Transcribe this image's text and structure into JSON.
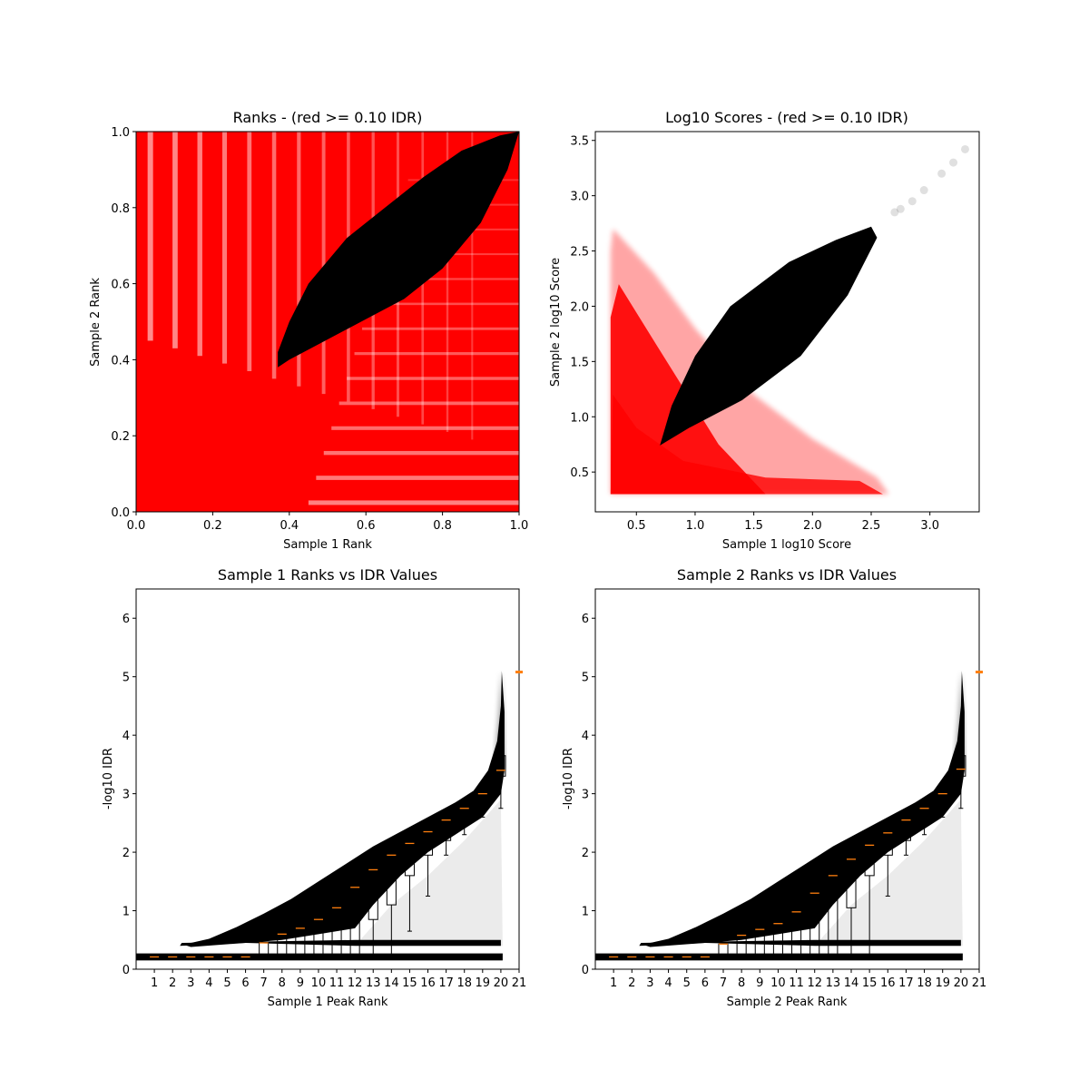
{
  "colors": {
    "hit": "#ff0000",
    "pass": "#000000",
    "median": "#ff7f0e",
    "box": "#000000"
  },
  "chart_data": [
    {
      "id": "ranks",
      "type": "scatter",
      "title": "Ranks - (red >= 0.10 IDR)",
      "xlabel": "Sample 1 Rank",
      "ylabel": "Sample 2 Rank",
      "xlim": [
        0,
        1
      ],
      "ylim": [
        0,
        1
      ],
      "xticks": [
        0,
        0.2,
        0.4,
        0.6,
        0.8,
        1.0
      ],
      "yticks": [
        0,
        0.2,
        0.4,
        0.6,
        0.8,
        1.0
      ],
      "xtick_labels": [
        "0.0",
        "0.2",
        "0.4",
        "0.6",
        "0.8",
        "1.0"
      ],
      "ytick_labels": [
        "0.0",
        "0.2",
        "0.4",
        "0.6",
        "0.8",
        "1.0"
      ],
      "series": [
        {
          "color": "red",
          "region": "above IDR 0.10 (filled background)"
        },
        {
          "color": "black",
          "region_polygon": [
            [
              0.37,
              0.38
            ],
            [
              0.4,
              0.4
            ],
            [
              0.55,
              0.48
            ],
            [
              0.7,
              0.56
            ],
            [
              0.8,
              0.64
            ],
            [
              0.9,
              0.76
            ],
            [
              0.97,
              0.9
            ],
            [
              1.0,
              1.0
            ],
            [
              0.95,
              0.99
            ],
            [
              0.85,
              0.95
            ],
            [
              0.75,
              0.88
            ],
            [
              0.65,
              0.8
            ],
            [
              0.55,
              0.72
            ],
            [
              0.45,
              0.6
            ],
            [
              0.4,
              0.5
            ],
            [
              0.37,
              0.42
            ]
          ]
        }
      ]
    },
    {
      "id": "scores",
      "type": "scatter",
      "title": "Log10 Scores - (red >= 0.10 IDR)",
      "xlabel": "Sample 1 log10 Score",
      "ylabel": "Sample 2 log10 Score",
      "xlim": [
        0.15,
        3.42
      ],
      "ylim": [
        0.14,
        3.58
      ],
      "xticks": [
        0.5,
        1.0,
        1.5,
        2.0,
        2.5,
        3.0
      ],
      "yticks": [
        0.5,
        1.0,
        1.5,
        2.0,
        2.5,
        3.0,
        3.5
      ],
      "xtick_labels": [
        "0.5",
        "1.0",
        "1.5",
        "2.0",
        "2.5",
        "3.0"
      ],
      "ytick_labels": [
        "0.5",
        "1.0",
        "1.5",
        "2.0",
        "2.5",
        "3.0",
        "3.5"
      ],
      "series": [
        {
          "color": "red",
          "region_polygon": [
            [
              0.28,
              0.3
            ],
            [
              2.65,
              0.3
            ],
            [
              2.55,
              0.45
            ],
            [
              2.0,
              0.8
            ],
            [
              1.5,
              1.2
            ],
            [
              1.0,
              1.8
            ],
            [
              0.65,
              2.3
            ],
            [
              0.3,
              2.7
            ],
            [
              0.28,
              2.5
            ]
          ]
        },
        {
          "color": "black",
          "region_polygon": [
            [
              0.7,
              0.74
            ],
            [
              0.95,
              0.9
            ],
            [
              1.4,
              1.15
            ],
            [
              1.9,
              1.55
            ],
            [
              2.3,
              2.1
            ],
            [
              2.55,
              2.62
            ],
            [
              2.5,
              2.72
            ],
            [
              2.2,
              2.6
            ],
            [
              1.8,
              2.4
            ],
            [
              1.3,
              2.0
            ],
            [
              1.0,
              1.55
            ],
            [
              0.8,
              1.1
            ]
          ]
        },
        {
          "color": "black",
          "points": [
            [
              2.75,
              2.88
            ],
            [
              2.85,
              2.95
            ],
            [
              2.95,
              3.05
            ],
            [
              3.1,
              3.2
            ],
            [
              3.2,
              3.3
            ],
            [
              3.3,
              3.42
            ],
            [
              2.7,
              2.85
            ]
          ]
        }
      ]
    },
    {
      "id": "s1idr",
      "type": "box",
      "title": "Sample 1 Ranks vs IDR Values",
      "xlabel": "Sample 1 Peak Rank",
      "ylabel": "-log10 IDR",
      "xlim": [
        0,
        21
      ],
      "ylim": [
        0,
        6.5
      ],
      "xticks": [
        1,
        2,
        3,
        4,
        5,
        6,
        7,
        8,
        9,
        10,
        11,
        12,
        13,
        14,
        15,
        16,
        17,
        18,
        19,
        20,
        21
      ],
      "yticks": [
        0,
        1,
        2,
        3,
        4,
        5,
        6
      ],
      "xtick_labels": [
        "1",
        "2",
        "3",
        "4",
        "5",
        "6",
        "7",
        "8",
        "9",
        "10",
        "11",
        "12",
        "13",
        "14",
        "15",
        "16",
        "17",
        "18",
        "19",
        "20",
        "21"
      ],
      "ytick_labels": [
        "0",
        "1",
        "2",
        "3",
        "4",
        "5",
        "6"
      ],
      "medians": [
        0.21,
        0.21,
        0.21,
        0.21,
        0.21,
        0.21,
        0.45,
        0.6,
        0.7,
        0.85,
        1.05,
        1.4,
        1.7,
        1.95,
        2.15,
        2.35,
        2.55,
        2.75,
        3.0,
        3.4
      ],
      "q1": [
        0.21,
        0.21,
        0.21,
        0.21,
        0.21,
        0.21,
        0.21,
        0.21,
        0.21,
        0.21,
        0.21,
        0.21,
        0.85,
        1.1,
        1.6,
        1.95,
        2.2,
        2.5,
        2.8,
        3.3
      ],
      "q3": [
        0.21,
        0.21,
        0.21,
        0.21,
        0.21,
        0.21,
        0.45,
        0.6,
        0.7,
        0.85,
        1.05,
        1.4,
        1.7,
        1.95,
        2.15,
        2.35,
        2.55,
        2.75,
        3.0,
        3.65
      ],
      "whisker_low": [
        0.21,
        0.21,
        0.21,
        0.21,
        0.21,
        0.21,
        0.21,
        0.21,
        0.21,
        0.21,
        0.21,
        0.21,
        0.21,
        0.21,
        0.65,
        1.25,
        1.95,
        2.3,
        2.6,
        2.75
      ],
      "whisker_high": [
        0.21,
        0.21,
        0.21,
        0.21,
        0.21,
        0.21,
        0.45,
        0.6,
        0.7,
        0.85,
        1.05,
        1.4,
        1.7,
        1.95,
        2.15,
        2.35,
        2.55,
        2.75,
        3.0,
        3.65
      ],
      "outlier_marker": {
        "x": 21,
        "y": 5.08
      }
    },
    {
      "id": "s2idr",
      "type": "box",
      "title": "Sample 2 Ranks vs IDR Values",
      "xlabel": "Sample 2 Peak Rank",
      "ylabel": "-log10 IDR",
      "xlim": [
        0,
        21
      ],
      "ylim": [
        0,
        6.5
      ],
      "xticks": [
        1,
        2,
        3,
        4,
        5,
        6,
        7,
        8,
        9,
        10,
        11,
        12,
        13,
        14,
        15,
        16,
        17,
        18,
        19,
        20,
        21
      ],
      "yticks": [
        0,
        1,
        2,
        3,
        4,
        5,
        6
      ],
      "xtick_labels": [
        "1",
        "2",
        "3",
        "4",
        "5",
        "6",
        "7",
        "8",
        "9",
        "10",
        "11",
        "12",
        "13",
        "14",
        "15",
        "16",
        "17",
        "18",
        "19",
        "20",
        "21"
      ],
      "ytick_labels": [
        "0",
        "1",
        "2",
        "3",
        "4",
        "5",
        "6"
      ],
      "medians": [
        0.21,
        0.21,
        0.21,
        0.21,
        0.21,
        0.21,
        0.43,
        0.58,
        0.68,
        0.78,
        0.98,
        1.3,
        1.6,
        1.88,
        2.12,
        2.33,
        2.55,
        2.75,
        3.0,
        3.42
      ],
      "q1": [
        0.21,
        0.21,
        0.21,
        0.21,
        0.21,
        0.21,
        0.21,
        0.21,
        0.21,
        0.21,
        0.21,
        0.21,
        0.21,
        1.05,
        1.6,
        1.95,
        2.2,
        2.5,
        2.8,
        3.3
      ],
      "q3": [
        0.21,
        0.21,
        0.21,
        0.21,
        0.21,
        0.21,
        0.43,
        0.58,
        0.68,
        0.78,
        0.98,
        1.3,
        1.6,
        1.88,
        2.12,
        2.33,
        2.55,
        2.75,
        3.0,
        3.65
      ],
      "whisker_low": [
        0.21,
        0.21,
        0.21,
        0.21,
        0.21,
        0.21,
        0.21,
        0.21,
        0.21,
        0.21,
        0.21,
        0.21,
        0.21,
        0.21,
        0.21,
        1.25,
        1.95,
        2.3,
        2.6,
        2.75
      ],
      "whisker_high": [
        0.21,
        0.21,
        0.21,
        0.21,
        0.21,
        0.21,
        0.43,
        0.58,
        0.68,
        0.78,
        0.98,
        1.3,
        1.6,
        1.88,
        2.12,
        2.33,
        2.55,
        2.75,
        3.0,
        3.65
      ],
      "outlier_marker": {
        "x": 21,
        "y": 5.08
      }
    }
  ]
}
